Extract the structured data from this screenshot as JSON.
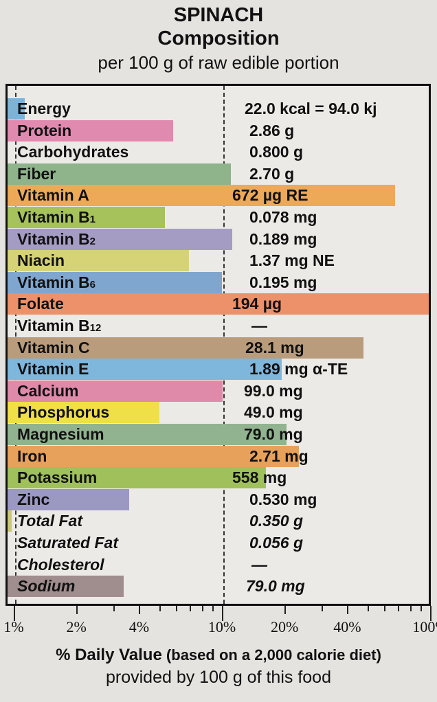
{
  "header": {
    "title": "SPINACH",
    "subtitle": "Composition",
    "note": "per 100 g of raw edible portion"
  },
  "footer": {
    "xlabel_bold": "% Daily Value",
    "xlabel_rest": " (based on a 2,000 calorie diet)",
    "xlabel_line2": "provided by 100 g of this food"
  },
  "chart_data": {
    "type": "bar",
    "orientation": "horizontal",
    "title": "SPINACH Composition",
    "subtitle": "per 100 g of raw edible portion",
    "xlabel": "% Daily Value (based on a 2,000 calorie diet) provided by 100 g of this food",
    "xscale": "log",
    "xlim": [
      1,
      100
    ],
    "xticks": [
      "1%",
      "2%",
      "4%",
      "10%",
      "20%",
      "40%",
      "100%"
    ],
    "reference_line": "10%",
    "categories": [
      "Energy",
      "Protein",
      "Carbohydrates",
      "Fiber",
      "Vitamin A",
      "Vitamin B1",
      "Vitamin B2",
      "Niacin",
      "Vitamin B6",
      "Folate",
      "Vitamin B12",
      "Vitamin C",
      "Vitamin E",
      "Calcium",
      "Phosphorus",
      "Magnesium",
      "Iron",
      "Potassium",
      "Zinc",
      "Total Fat",
      "Saturated Fat",
      "Cholesterol",
      "Sodium"
    ],
    "amounts": [
      "22.0 kcal = 94.0 kj",
      "2.86 g",
      "0.800 g",
      "2.70 g",
      "672 µg RE",
      "0.078 mg",
      "0.189 mg",
      "1.37 mg NE",
      "0.195 mg",
      "194 µg",
      "—",
      "28.1 mg",
      "1.89 mg α-TE",
      "99.0 mg",
      "49.0 mg",
      "79.0 mg",
      "2.71 mg",
      "558 mg",
      "0.530 mg",
      "0.350 g",
      "0.056 g",
      "—",
      "79.0 mg"
    ],
    "values_pct_dv": [
      1.1,
      5.7,
      0.3,
      10.8,
      67,
      5.2,
      11,
      6.8,
      9.8,
      97,
      0,
      47,
      19,
      9.9,
      4.9,
      20,
      23,
      16,
      3.5,
      0.5,
      0.3,
      0,
      3.3
    ],
    "colors": [
      "#7fb3d5",
      "#e08ab0",
      "none",
      "#8fb38a",
      "#eda958",
      "#a6c25a",
      "#a59cc4",
      "#d6d377",
      "#7fa6cf",
      "#ec9169",
      "none",
      "#b99c7c",
      "#7fb6dc",
      "#df8aa9",
      "#efe047",
      "#92b38f",
      "#e8a15a",
      "#9fc05a",
      "#9b98c2",
      "#c9c875",
      "none",
      "none",
      "#a08d8e"
    ],
    "italic_rows": [
      "Total Fat",
      "Saturated Fat",
      "Cholesterol",
      "Sodium"
    ]
  },
  "rows": [
    {
      "label": "Energy",
      "amount": "22.0 kcal = 94.0 kj"
    },
    {
      "label": "Protein",
      "amount": "2.86 g"
    },
    {
      "label": "Carbohydrates",
      "amount": "0.800 g"
    },
    {
      "label": "Fiber",
      "amount": "2.70 g"
    },
    {
      "label": "Vitamin A",
      "amount": "672 µg RE"
    },
    {
      "label": "Vitamin B",
      "sub": "1",
      "amount": "0.078 mg"
    },
    {
      "label": "Vitamin B",
      "sub": "2",
      "amount": "0.189 mg"
    },
    {
      "label": "Niacin",
      "amount": "1.37 mg NE"
    },
    {
      "label": "Vitamin B",
      "sub": "6",
      "amount": "0.195 mg"
    },
    {
      "label": "Folate",
      "amount": "194 µg"
    },
    {
      "label": "Vitamin B",
      "sub": "12",
      "amount": "—"
    },
    {
      "label": "Vitamin C",
      "amount": "28.1 mg"
    },
    {
      "label": "Vitamin E",
      "amount": "1.89 mg α-TE"
    },
    {
      "label": "Calcium",
      "amount": "99.0 mg"
    },
    {
      "label": "Phosphorus",
      "amount": "49.0 mg"
    },
    {
      "label": "Magnesium",
      "amount": "79.0 mg"
    },
    {
      "label": "Iron",
      "amount": "2.71 mg"
    },
    {
      "label": "Potassium",
      "amount": "558 mg"
    },
    {
      "label": "Zinc",
      "amount": "0.530 mg"
    },
    {
      "label": "Total Fat",
      "amount": "0.350 g"
    },
    {
      "label": "Saturated Fat",
      "amount": "0.056 g"
    },
    {
      "label": "Cholesterol",
      "amount": "—"
    },
    {
      "label": "Sodium",
      "amount": "79.0 mg"
    }
  ],
  "axis": {
    "ticks": [
      "1%",
      "2%",
      "4%",
      "10%",
      "20%",
      "40%",
      "100%"
    ]
  }
}
